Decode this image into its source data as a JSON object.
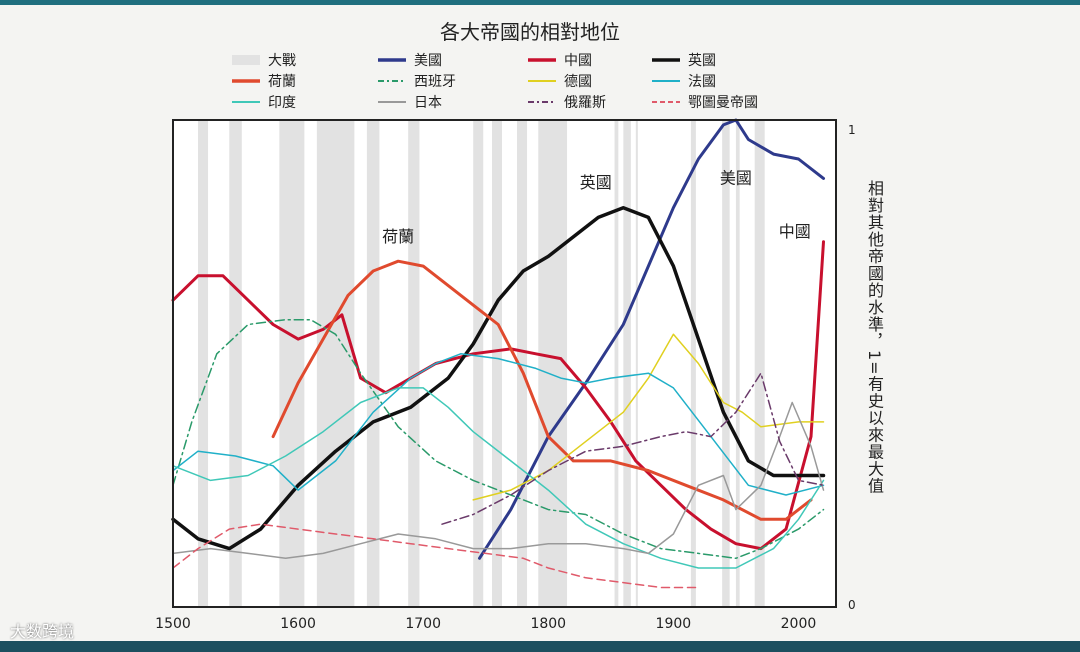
{
  "chart_data": {
    "type": "line",
    "title": "各大帝國的相對地位",
    "ylabel": "相對其他帝國的水準，1=有史以來最大值",
    "xlim": [
      1500,
      2030
    ],
    "ylim": [
      0,
      1
    ],
    "x_ticks": [
      "1500",
      "1600",
      "1700",
      "1800",
      "1900",
      "2000"
    ],
    "y_ticks": [
      "0",
      "1"
    ],
    "legend_position": "top",
    "war_label": "大戰",
    "war_periods": [
      [
        1520,
        1528
      ],
      [
        1545,
        1555
      ],
      [
        1585,
        1605
      ],
      [
        1615,
        1645
      ],
      [
        1655,
        1665
      ],
      [
        1688,
        1697
      ],
      [
        1740,
        1748
      ],
      [
        1755,
        1763
      ],
      [
        1775,
        1783
      ],
      [
        1792,
        1815
      ],
      [
        1853,
        1856
      ],
      [
        1860,
        1866
      ],
      [
        1870,
        1871
      ],
      [
        1914,
        1918
      ],
      [
        1939,
        1945
      ],
      [
        1950,
        1953
      ],
      [
        1965,
        1973
      ]
    ],
    "series": [
      {
        "name": "美國",
        "color": "#2e3a8c",
        "dash": "solid",
        "width": 3,
        "x": [
          1745,
          1770,
          1800,
          1830,
          1860,
          1880,
          1900,
          1920,
          1940,
          1950,
          1960,
          1980,
          2000,
          2020
        ],
        "y": [
          0.1,
          0.2,
          0.35,
          0.46,
          0.58,
          0.7,
          0.82,
          0.92,
          0.99,
          1.0,
          0.96,
          0.93,
          0.92,
          0.88
        ]
      },
      {
        "name": "中國",
        "color": "#c8102e",
        "dash": "solid",
        "width": 3,
        "x": [
          1500,
          1520,
          1540,
          1560,
          1580,
          1600,
          1620,
          1635,
          1650,
          1670,
          1690,
          1710,
          1740,
          1770,
          1790,
          1810,
          1830,
          1850,
          1870,
          1890,
          1910,
          1930,
          1950,
          1970,
          1990,
          2010,
          2020
        ],
        "y": [
          0.63,
          0.68,
          0.68,
          0.63,
          0.58,
          0.55,
          0.57,
          0.6,
          0.47,
          0.44,
          0.47,
          0.5,
          0.52,
          0.53,
          0.52,
          0.51,
          0.45,
          0.38,
          0.3,
          0.25,
          0.2,
          0.16,
          0.13,
          0.12,
          0.16,
          0.35,
          0.75
        ]
      },
      {
        "name": "英國",
        "color": "#111111",
        "dash": "solid",
        "width": 3.5,
        "x": [
          1500,
          1520,
          1545,
          1570,
          1600,
          1630,
          1660,
          1690,
          1720,
          1740,
          1760,
          1780,
          1800,
          1820,
          1840,
          1860,
          1880,
          1900,
          1920,
          1940,
          1960,
          1980,
          2000,
          2020
        ],
        "y": [
          0.18,
          0.14,
          0.12,
          0.16,
          0.25,
          0.32,
          0.38,
          0.41,
          0.47,
          0.54,
          0.63,
          0.69,
          0.72,
          0.76,
          0.8,
          0.82,
          0.8,
          0.7,
          0.55,
          0.4,
          0.3,
          0.27,
          0.27,
          0.27
        ]
      },
      {
        "name": "荷蘭",
        "color": "#e04a2e",
        "dash": "solid",
        "width": 3,
        "x": [
          1580,
          1600,
          1620,
          1640,
          1660,
          1680,
          1700,
          1720,
          1740,
          1760,
          1780,
          1800,
          1820,
          1850,
          1880,
          1910,
          1940,
          1970,
          1990,
          2010
        ],
        "y": [
          0.35,
          0.46,
          0.55,
          0.64,
          0.69,
          0.71,
          0.7,
          0.66,
          0.62,
          0.58,
          0.48,
          0.35,
          0.3,
          0.3,
          0.28,
          0.25,
          0.22,
          0.18,
          0.18,
          0.22
        ]
      },
      {
        "name": "西班牙",
        "color": "#2a9a6a",
        "dash": "dashdot",
        "width": 1.5,
        "x": [
          1500,
          1515,
          1535,
          1560,
          1590,
          1610,
          1630,
          1650,
          1680,
          1710,
          1740,
          1770,
          1800,
          1830,
          1860,
          1890,
          1920,
          1950,
          1970,
          2000,
          2020
        ],
        "y": [
          0.25,
          0.38,
          0.52,
          0.58,
          0.59,
          0.59,
          0.56,
          0.48,
          0.37,
          0.3,
          0.26,
          0.23,
          0.2,
          0.19,
          0.15,
          0.12,
          0.11,
          0.1,
          0.12,
          0.16,
          0.2
        ]
      },
      {
        "name": "德國",
        "color": "#e0d020",
        "dash": "solid",
        "width": 1.5,
        "x": [
          1740,
          1770,
          1800,
          1820,
          1840,
          1860,
          1880,
          1900,
          1920,
          1940,
          1955,
          1970,
          2000,
          2020
        ],
        "y": [
          0.22,
          0.24,
          0.28,
          0.32,
          0.36,
          0.4,
          0.47,
          0.56,
          0.5,
          0.42,
          0.4,
          0.37,
          0.38,
          0.38
        ]
      },
      {
        "name": "法國",
        "color": "#20b0c8",
        "dash": "solid",
        "width": 1.5,
        "x": [
          1500,
          1520,
          1550,
          1580,
          1600,
          1630,
          1660,
          1690,
          1710,
          1730,
          1760,
          1790,
          1810,
          1830,
          1850,
          1880,
          1900,
          1930,
          1960,
          1990,
          2020
        ],
        "y": [
          0.28,
          0.32,
          0.31,
          0.29,
          0.24,
          0.3,
          0.4,
          0.47,
          0.5,
          0.52,
          0.51,
          0.49,
          0.47,
          0.46,
          0.47,
          0.48,
          0.45,
          0.35,
          0.25,
          0.23,
          0.25
        ]
      },
      {
        "name": "印度",
        "color": "#40c8b8",
        "dash": "solid",
        "width": 1.5,
        "x": [
          1500,
          1530,
          1560,
          1590,
          1620,
          1650,
          1680,
          1700,
          1720,
          1740,
          1770,
          1800,
          1830,
          1860,
          1890,
          1920,
          1950,
          1980,
          2000,
          2020
        ],
        "y": [
          0.29,
          0.26,
          0.27,
          0.31,
          0.36,
          0.42,
          0.45,
          0.45,
          0.41,
          0.36,
          0.3,
          0.24,
          0.17,
          0.13,
          0.1,
          0.08,
          0.08,
          0.12,
          0.18,
          0.26
        ]
      },
      {
        "name": "日本",
        "color": "#999999",
        "dash": "solid",
        "width": 1.5,
        "x": [
          1500,
          1530,
          1560,
          1590,
          1620,
          1650,
          1680,
          1710,
          1740,
          1770,
          1800,
          1830,
          1860,
          1880,
          1900,
          1920,
          1940,
          1950,
          1970,
          1985,
          1995,
          2010,
          2020
        ],
        "y": [
          0.11,
          0.12,
          0.11,
          0.1,
          0.11,
          0.13,
          0.15,
          0.14,
          0.12,
          0.12,
          0.13,
          0.13,
          0.12,
          0.11,
          0.15,
          0.25,
          0.27,
          0.2,
          0.25,
          0.35,
          0.42,
          0.33,
          0.24
        ]
      },
      {
        "name": "俄羅斯",
        "color": "#6a3a6a",
        "dash": "dashdot",
        "width": 1.5,
        "x": [
          1715,
          1740,
          1770,
          1800,
          1830,
          1860,
          1890,
          1910,
          1930,
          1950,
          1970,
          1985,
          2000,
          2020
        ],
        "y": [
          0.17,
          0.19,
          0.23,
          0.28,
          0.32,
          0.33,
          0.35,
          0.36,
          0.35,
          0.4,
          0.48,
          0.34,
          0.26,
          0.25
        ]
      },
      {
        "name": "鄂圖曼帝國",
        "color": "#e05a6a",
        "dash": "dash",
        "width": 1.5,
        "x": [
          1500,
          1520,
          1545,
          1570,
          1600,
          1630,
          1660,
          1690,
          1720,
          1750,
          1780,
          1800,
          1830,
          1860,
          1890,
          1920
        ],
        "y": [
          0.08,
          0.12,
          0.16,
          0.17,
          0.16,
          0.15,
          0.14,
          0.13,
          0.12,
          0.11,
          0.1,
          0.08,
          0.06,
          0.05,
          0.04,
          0.04
        ]
      }
    ],
    "annotations": [
      {
        "text": "荷蘭",
        "x": 1680,
        "y": 0.75
      },
      {
        "text": "英國",
        "x": 1838,
        "y": 0.86
      },
      {
        "text": "美國",
        "x": 1950,
        "y": 0.87
      },
      {
        "text": "中國",
        "x": 1997,
        "y": 0.76
      }
    ]
  },
  "watermark": "大数跨境"
}
